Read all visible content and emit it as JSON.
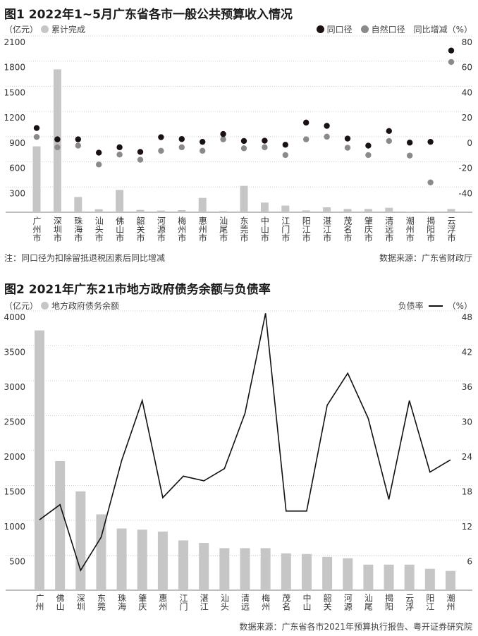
{
  "chart_data": [
    {
      "type": "bar+scatter",
      "title": "图1 2022年1~5月广东省各市一般公共预算收入情况",
      "left_unit": "（亿元）",
      "right_unit": "同比增减（%）",
      "legend": {
        "bar": "累计完成",
        "dot_same": "同口径",
        "dot_natural": "自然口径"
      },
      "categories": [
        "广州市",
        "深圳市",
        "珠海市",
        "汕头市",
        "佛山市",
        "韶关市",
        "河源市",
        "梅州市",
        "惠州市",
        "汕尾市",
        "东莞市",
        "中山市",
        "江门市",
        "阳江市",
        "湛江市",
        "茂名市",
        "肇庆市",
        "清远市",
        "潮州市",
        "揭阳市",
        "云浮市"
      ],
      "series": [
        {
          "name": "累计完成",
          "axis": "left",
          "values": [
            785,
            1702,
            182,
            36,
            266,
            28,
            20,
            25,
            171,
            14,
            314,
            115,
            79,
            22,
            59,
            39,
            39,
            53,
            6,
            6,
            39
          ]
        },
        {
          "name": "同口径",
          "axis": "right",
          "values": [
            6.9,
            -2.1,
            -2.1,
            -12.7,
            -8.4,
            -12.1,
            -0.4,
            -1.9,
            -4.1,
            2.1,
            -3.4,
            -3.2,
            -6.4,
            11.2,
            8.6,
            -1.5,
            -7.1,
            4.5,
            -4.7,
            -4.1,
            68.4
          ]
        },
        {
          "name": "自然口径",
          "axis": "right",
          "values": [
            -0.2,
            -8.4,
            -7.1,
            -22.1,
            -14.2,
            -18.3,
            -11.2,
            -8.4,
            -11.2,
            -2.1,
            -9.2,
            -8.4,
            -14.6,
            -2.1,
            0,
            -8.8,
            -14.6,
            -3.4,
            -15.0,
            -36.3,
            59.3
          ]
        }
      ],
      "left_ticks": [
        300,
        600,
        900,
        1200,
        1500,
        1800,
        2100
      ],
      "left_ylim": [
        0,
        2100
      ],
      "right_ticks": [
        -40,
        -20,
        0,
        20,
        40,
        60,
        80
      ],
      "right_ylim": [
        -60,
        80
      ],
      "note": "注：同口径为扣除留抵退税因素后同比增减",
      "source": "数据来源：广东省财政厅",
      "colors": {
        "bar": "#c6c6c6",
        "dot_same": "#1a1111",
        "dot_natural": "#8a8a8a"
      }
    },
    {
      "type": "bar+line",
      "title": "图2 2021年广东21市地方政府债务余额与负债率",
      "left_unit": "（亿元）",
      "right_label": "负债率",
      "right_unit": "（%）",
      "legend": {
        "bar": "地方政府债务余额"
      },
      "categories": [
        "广州",
        "佛山",
        "深圳",
        "东莞",
        "珠海",
        "肇庆",
        "惠州",
        "江门",
        "湛江",
        "汕头",
        "清远",
        "梅州",
        "茂名",
        "中山",
        "韶关",
        "河源",
        "汕尾",
        "揭阳",
        "云浮",
        "阳江",
        "潮州"
      ],
      "series": [
        {
          "name": "地方政府债务余额",
          "axis": "left",
          "values": [
            3721,
            1849,
            1415,
            1086,
            884,
            867,
            840,
            713,
            676,
            602,
            602,
            602,
            528,
            518,
            477,
            457,
            366,
            366,
            366,
            306,
            276
          ]
        },
        {
          "name": "负债率",
          "axis": "right",
          "values": [
            12.1,
            14.7,
            3.4,
            9.1,
            22.3,
            32.6,
            15.9,
            19.6,
            18.8,
            20.9,
            30.4,
            47.6,
            13.6,
            13.6,
            31.8,
            37.3,
            29.5,
            15.6,
            32.6,
            20.3,
            22.4
          ]
        }
      ],
      "left_ticks": [
        500,
        1000,
        1500,
        2000,
        2500,
        3000,
        3500,
        4000
      ],
      "left_ylim": [
        0,
        4000
      ],
      "right_ticks": [
        6,
        12,
        18,
        24,
        30,
        36,
        42,
        48
      ],
      "right_ylim": [
        0,
        48
      ],
      "source": "数据来源：广东省各市2021年预算执行报告、粤开证券研究院",
      "colors": {
        "bar": "#c6c6c6",
        "line": "#111111"
      }
    }
  ]
}
